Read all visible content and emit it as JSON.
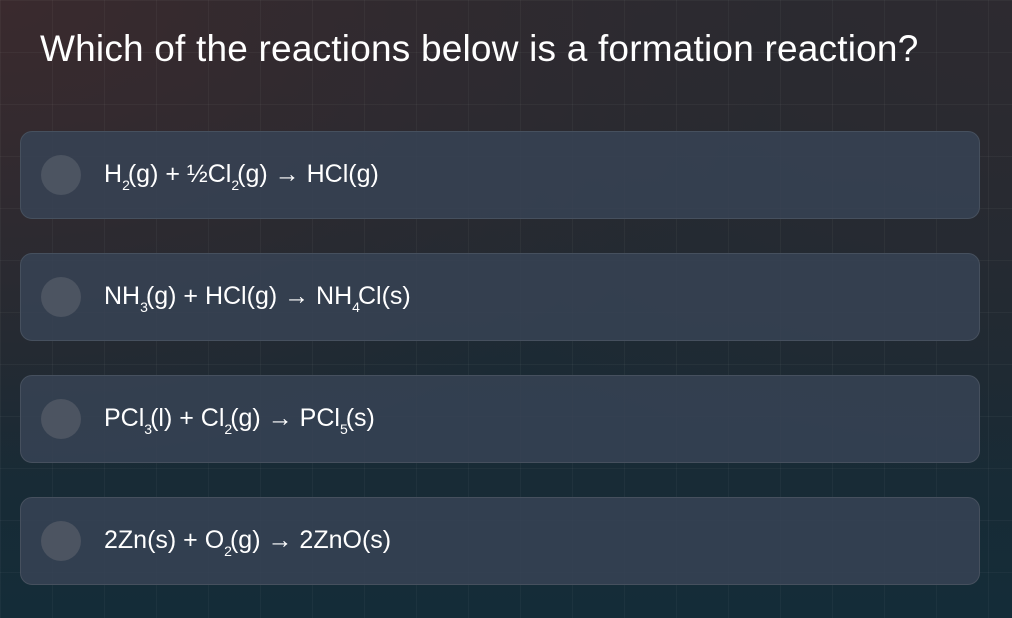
{
  "question": "Which of the reactions below is a formation reaction?",
  "colors": {
    "card": "#374355",
    "radio": "#4c5461",
    "text": "#ffffff"
  },
  "options": [
    {
      "selected": false,
      "segments": [
        {
          "t": "H"
        },
        {
          "s": "2"
        },
        {
          "t": "(g) + ½Cl"
        },
        {
          "s": "2"
        },
        {
          "t": "(g) → HCl(g)"
        }
      ]
    },
    {
      "selected": false,
      "segments": [
        {
          "t": "NH"
        },
        {
          "s": "3"
        },
        {
          "t": "(g) + HCl(g) → NH"
        },
        {
          "s": "4"
        },
        {
          "t": "Cl(s)"
        }
      ]
    },
    {
      "selected": false,
      "segments": [
        {
          "t": "PCl"
        },
        {
          "s": "3"
        },
        {
          "t": "(l) + Cl"
        },
        {
          "s": "2"
        },
        {
          "t": "(g) → PCl"
        },
        {
          "s": "5"
        },
        {
          "t": "(s)"
        }
      ]
    },
    {
      "selected": false,
      "segments": [
        {
          "t": "2Zn(s) + O"
        },
        {
          "s": "2"
        },
        {
          "t": "(g) → 2ZnO(s)"
        }
      ]
    }
  ]
}
